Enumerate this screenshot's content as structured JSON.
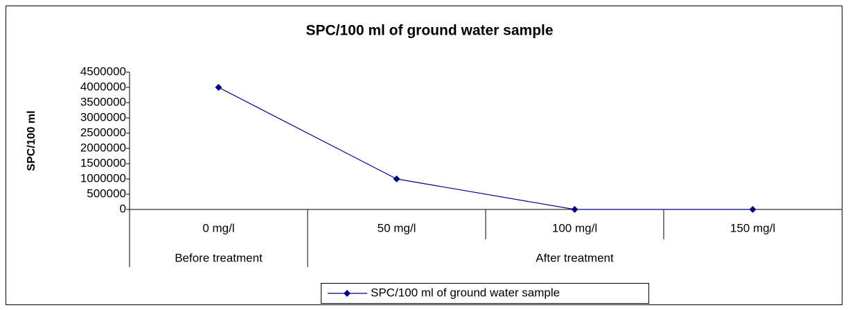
{
  "chart_data": {
    "type": "line",
    "title": "SPC/100 ml of ground water sample",
    "y_label": "SPC/100 ml",
    "categories": [
      "0 mg/l",
      "50 mg/l",
      "100 mg/l",
      "150 mg/l"
    ],
    "groups": [
      {
        "name": "Before treatment",
        "count": 1
      },
      {
        "name": "After treatment",
        "count": 3
      }
    ],
    "series": [
      {
        "name": "SPC/100 ml of ground water sample",
        "color": "#000080",
        "values": [
          4000000,
          1000000,
          0,
          0
        ]
      }
    ],
    "ylim": [
      0,
      4500000
    ],
    "yticks": [
      0,
      500000,
      1000000,
      1500000,
      2000000,
      2500000,
      3000000,
      3500000,
      4000000,
      4500000
    ],
    "grid": false,
    "legend": "bottom"
  }
}
